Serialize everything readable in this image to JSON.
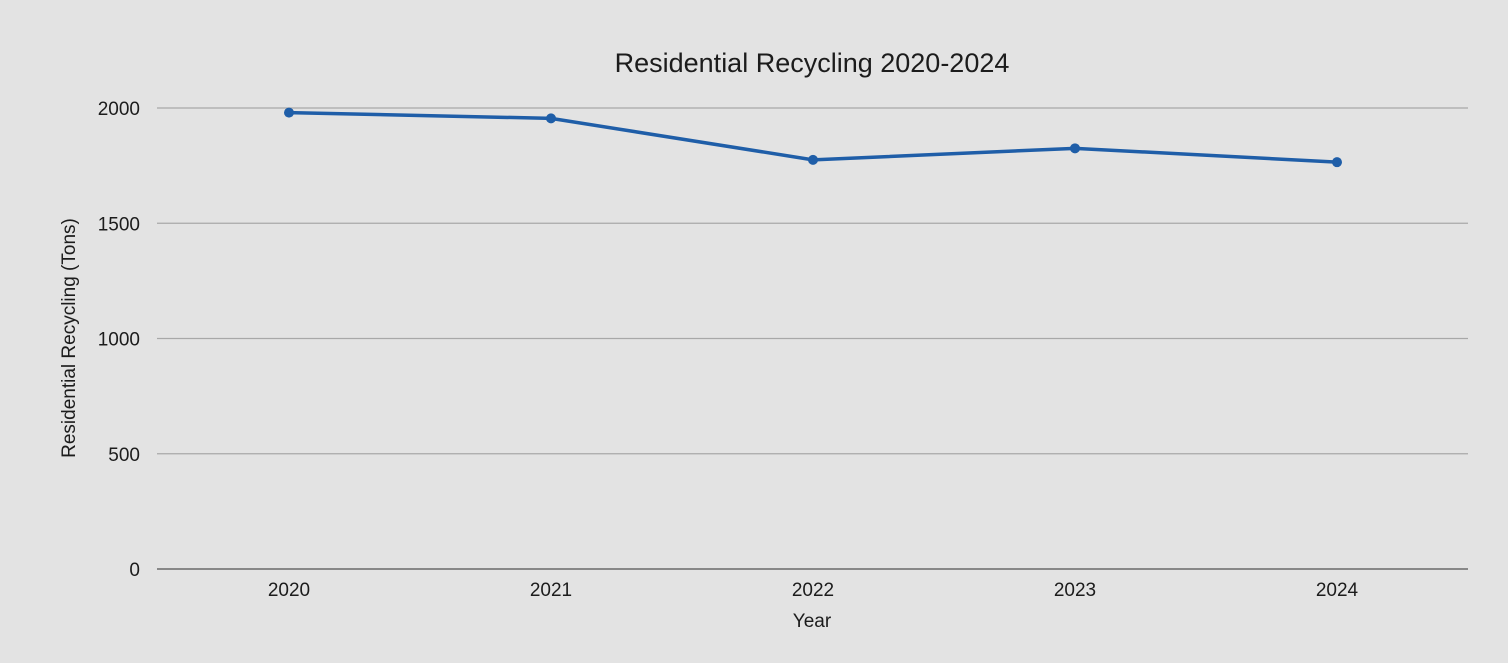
{
  "chart_data": {
    "type": "line",
    "title": "Residential Recycling 2020-2024",
    "xlabel": "Year",
    "ylabel": "Residential Recycling (Tons)",
    "categories": [
      "2020",
      "2021",
      "2022",
      "2023",
      "2024"
    ],
    "series": [
      {
        "values": [
          1980,
          1955,
          1775,
          1825,
          1765
        ]
      }
    ],
    "ylim": [
      0,
      2000
    ],
    "yticks": [
      "0",
      "500",
      "1000",
      "1500",
      "2000"
    ],
    "grid": true,
    "legend": "none",
    "colors": {
      "line": "#1f5ea8",
      "grid": "#a8a8a8",
      "background": "#e3e3e3"
    }
  }
}
